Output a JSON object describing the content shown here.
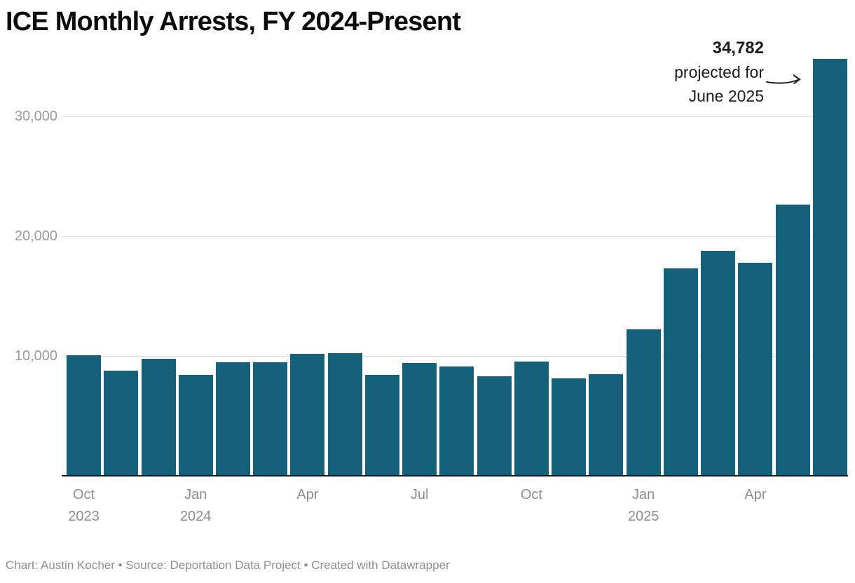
{
  "title": "ICE Monthly Arrests, FY 2024-Present",
  "annotation": {
    "value": "34,782",
    "line2": "projected for",
    "line3": "June 2025",
    "arrow_icon": "right-arrow"
  },
  "footer": {
    "text": "Chart: Austin Kocher • Source: Deportation Data Project • Created with Datawrapper"
  },
  "colors": {
    "bar": "#15607a",
    "grid": "#dedede",
    "axis": "#18181a",
    "y_tick_text": "#9b9b9b",
    "x_tick_text": "#8d8d8d",
    "title_text": "#0b0b0b",
    "annotation_text": "#1d1d1d",
    "footer_text": "#8f8f8f",
    "background": "#ffffff"
  },
  "chart_data": {
    "type": "bar",
    "title": "ICE Monthly Arrests, FY 2024-Present",
    "xlabel": "",
    "ylabel": "",
    "ylim": [
      0,
      35500
    ],
    "grid": "horizontal",
    "legend": "none",
    "categories": [
      "Oct 2023",
      "Nov 2023",
      "Dec 2023",
      "Jan 2024",
      "Feb 2024",
      "Mar 2024",
      "Apr 2024",
      "May 2024",
      "Jun 2024",
      "Jul 2024",
      "Aug 2024",
      "Sep 2024",
      "Oct 2024",
      "Nov 2024",
      "Dec 2024",
      "Jan 2025",
      "Feb 2025",
      "Mar 2025",
      "Apr 2025",
      "May 2025",
      "Jun 2025 (projected)"
    ],
    "values": [
      10050,
      8750,
      9750,
      8400,
      9500,
      9450,
      10150,
      10250,
      8450,
      9400,
      9100,
      8300,
      9550,
      8150,
      8500,
      12200,
      17300,
      18800,
      17800,
      22650,
      34782
    ],
    "y_ticks": [
      {
        "value": 10000,
        "label": "10,000"
      },
      {
        "value": 20000,
        "label": "20,000"
      },
      {
        "value": 30000,
        "label": "30,000"
      }
    ],
    "x_tick_labels": [
      {
        "index": 0,
        "lines": [
          "Oct",
          "2023"
        ]
      },
      {
        "index": 3,
        "lines": [
          "Jan",
          "2024"
        ]
      },
      {
        "index": 6,
        "lines": [
          "Apr"
        ]
      },
      {
        "index": 9,
        "lines": [
          "Jul"
        ]
      },
      {
        "index": 12,
        "lines": [
          "Oct"
        ]
      },
      {
        "index": 15,
        "lines": [
          "Jan",
          "2025"
        ]
      },
      {
        "index": 18,
        "lines": [
          "Apr"
        ]
      }
    ],
    "annotation": {
      "text": "34,782 projected for June 2025",
      "target_category": "Jun 2025 (projected)",
      "target_index": 20
    }
  }
}
